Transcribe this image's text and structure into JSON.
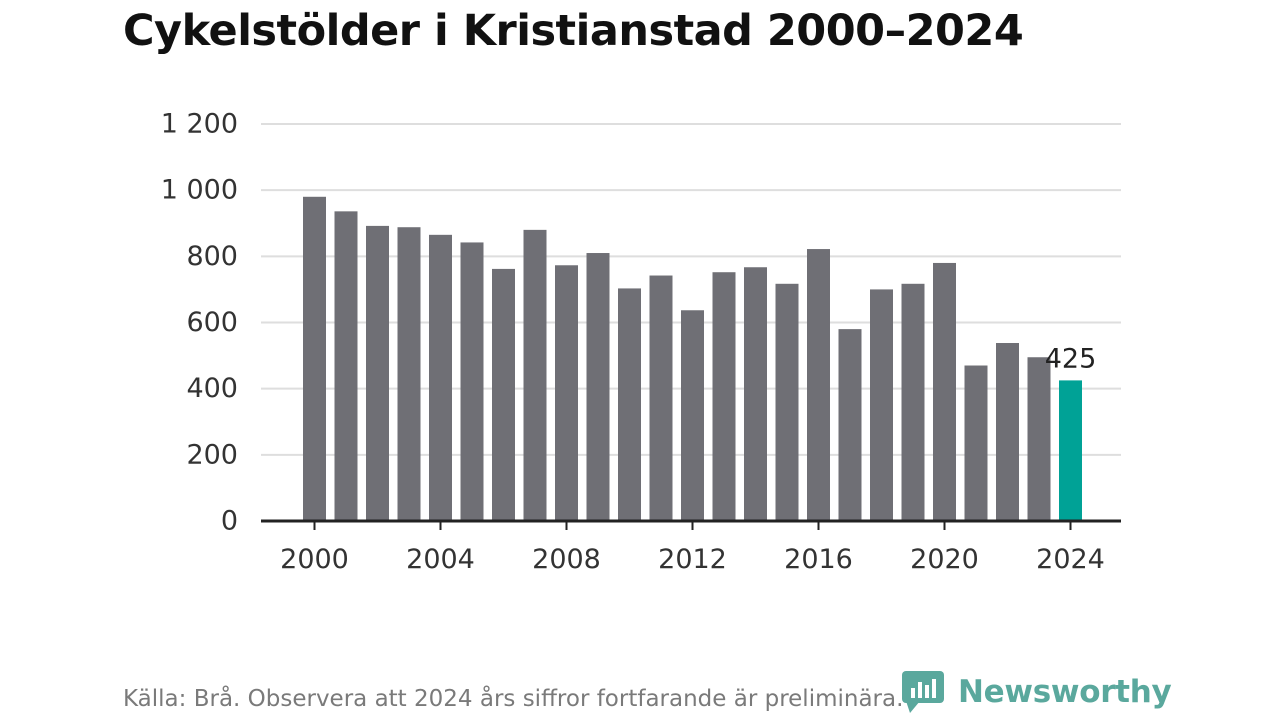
{
  "title": "Cykelstölder i Kristianstad 2000–2024",
  "source": "Källa: Brå. Observera att 2024 års siffror fortfarande är preliminära.",
  "brand": {
    "name": "Newsworthy",
    "icon": "newsworthy-logo-icon"
  },
  "colors": {
    "bar": "#6f6f75",
    "highlight": "#00a296",
    "grid": "#dedede",
    "axis": "#222222",
    "text": "#333333",
    "brand": "#5aa89d"
  },
  "chart_data": {
    "type": "bar",
    "title": "Cykelstölder i Kristianstad 2000–2024",
    "xlabel": "",
    "ylabel": "",
    "categories": [
      "2000",
      "2001",
      "2002",
      "2003",
      "2004",
      "2005",
      "2006",
      "2007",
      "2008",
      "2009",
      "2010",
      "2011",
      "2012",
      "2013",
      "2014",
      "2015",
      "2016",
      "2017",
      "2018",
      "2019",
      "2020",
      "2021",
      "2022",
      "2023",
      "2024"
    ],
    "values": [
      980,
      936,
      892,
      888,
      865,
      842,
      762,
      880,
      773,
      810,
      703,
      742,
      637,
      752,
      767,
      717,
      822,
      580,
      700,
      717,
      780,
      470,
      538,
      495,
      425
    ],
    "highlight_category": "2024",
    "annotation": {
      "category": "2024",
      "text": "425"
    },
    "x_ticks": [
      "2000",
      "2004",
      "2008",
      "2012",
      "2016",
      "2020",
      "2024"
    ],
    "y_ticks": [
      {
        "value": 0,
        "label": "0"
      },
      {
        "value": 200,
        "label": "200"
      },
      {
        "value": 400,
        "label": "400"
      },
      {
        "value": 600,
        "label": "600"
      },
      {
        "value": 800,
        "label": "800"
      },
      {
        "value": 1000,
        "label": "1 000"
      },
      {
        "value": 1200,
        "label": "1 200"
      }
    ],
    "ylim": [
      0,
      1200
    ],
    "grid": true,
    "legend": "none"
  }
}
